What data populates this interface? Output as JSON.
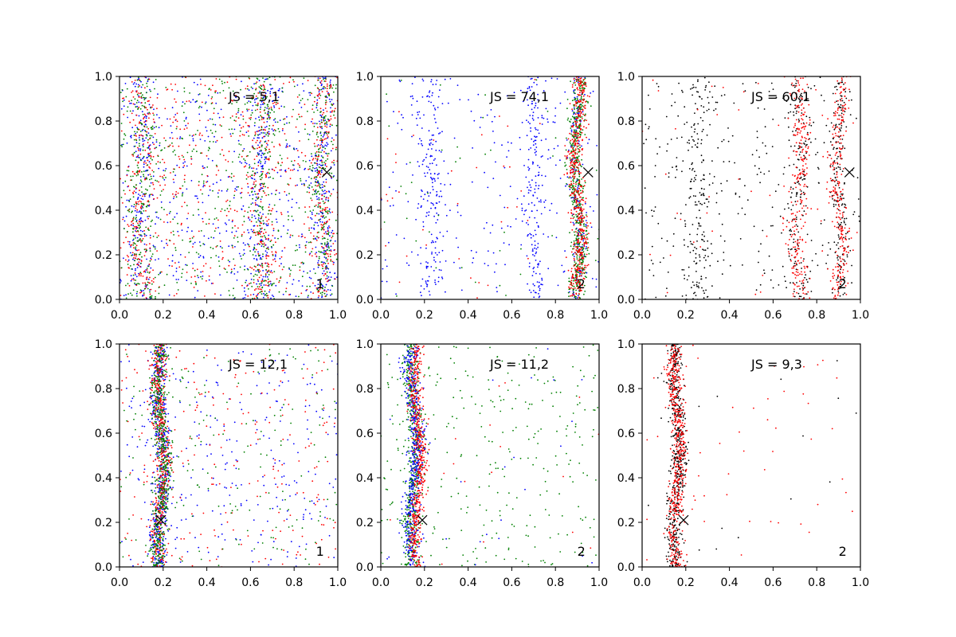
{
  "chart_data": [
    {
      "type": "scatter",
      "annotation": "JS = 5,1",
      "corner_label": "1",
      "marker": {
        "x": 0.95,
        "y": 0.57
      },
      "xlim": [
        0,
        1
      ],
      "ylim": [
        0,
        1
      ],
      "xticks": [
        "0.0",
        "0.2",
        "0.4",
        "0.6",
        "0.8",
        "1.0"
      ],
      "yticks": [
        "0.0",
        "0.2",
        "0.4",
        "0.6",
        "0.8",
        "1.0"
      ],
      "series": [
        {
          "color": "#0000ff",
          "bands": [
            {
              "center": 0.1,
              "width": 0.05
            },
            {
              "center": 0.65,
              "width": 0.05
            },
            {
              "center": 0.93,
              "width": 0.04
            }
          ],
          "uniform_fraction": 0.55
        },
        {
          "color": "#ff0000",
          "bands": [
            {
              "center": 0.1,
              "width": 0.05
            },
            {
              "center": 0.65,
              "width": 0.05
            },
            {
              "center": 0.93,
              "width": 0.04
            }
          ],
          "uniform_fraction": 0.55
        },
        {
          "color": "#008000",
          "bands": [
            {
              "center": 0.1,
              "width": 0.05
            },
            {
              "center": 0.65,
              "width": 0.05
            },
            {
              "center": 0.93,
              "width": 0.04
            }
          ],
          "uniform_fraction": 0.55
        }
      ]
    },
    {
      "type": "scatter",
      "annotation": "JS = 74,1",
      "corner_label": "2",
      "marker": {
        "x": 0.95,
        "y": 0.57
      },
      "xlim": [
        0,
        1
      ],
      "ylim": [
        0,
        1
      ],
      "xticks": [
        "0.0",
        "0.2",
        "0.4",
        "0.6",
        "0.8",
        "1.0"
      ],
      "yticks": [
        "0.0",
        "0.2",
        "0.4",
        "0.6",
        "0.8",
        "1.0"
      ],
      "series": [
        {
          "color": "#0000ff",
          "bands": [
            {
              "center": 0.23,
              "width": 0.05
            },
            {
              "center": 0.7,
              "width": 0.04
            },
            {
              "center": 0.9,
              "width": 0.03
            }
          ],
          "uniform_fraction": 0.25
        },
        {
          "color": "#008000",
          "bands": [
            {
              "center": 0.9,
              "width": 0.03
            }
          ],
          "uniform_fraction": 0.05
        },
        {
          "color": "#ff0000",
          "bands": [
            {
              "center": 0.9,
              "width": 0.03
            }
          ],
          "uniform_fraction": 0.05
        }
      ]
    },
    {
      "type": "scatter",
      "annotation": "JS = 60,1",
      "corner_label": "2",
      "marker": {
        "x": 0.95,
        "y": 0.57
      },
      "xlim": [
        0,
        1
      ],
      "ylim": [
        0,
        1
      ],
      "xticks": [
        "0.0",
        "0.2",
        "0.4",
        "0.6",
        "0.8",
        "1.0"
      ],
      "yticks": [
        "0.0",
        "0.2",
        "0.4",
        "0.6",
        "0.8",
        "1.0"
      ],
      "series": [
        {
          "color": "#000000",
          "bands": [
            {
              "center": 0.25,
              "width": 0.06
            },
            {
              "center": 0.72,
              "width": 0.05
            },
            {
              "center": 0.9,
              "width": 0.03
            }
          ],
          "uniform_fraction": 0.3
        },
        {
          "color": "#ff0000",
          "bands": [
            {
              "center": 0.9,
              "width": 0.03
            },
            {
              "center": 0.72,
              "width": 0.04
            }
          ],
          "uniform_fraction": 0.05
        }
      ]
    },
    {
      "type": "scatter",
      "annotation": "JS = 12,1",
      "corner_label": "1",
      "marker": {
        "x": 0.19,
        "y": 0.21
      },
      "xlim": [
        0,
        1
      ],
      "ylim": [
        0,
        1
      ],
      "xticks": [
        "0.0",
        "0.2",
        "0.4",
        "0.6",
        "0.8",
        "1.0"
      ],
      "yticks": [
        "0.0",
        "0.2",
        "0.4",
        "0.6",
        "0.8",
        "1.0"
      ],
      "series": [
        {
          "color": "#0000ff",
          "bands": [
            {
              "center": 0.19,
              "width": 0.03
            }
          ],
          "uniform_fraction": 0.3
        },
        {
          "color": "#ff0000",
          "bands": [
            {
              "center": 0.19,
              "width": 0.03
            }
          ],
          "uniform_fraction": 0.25
        },
        {
          "color": "#008000",
          "bands": [
            {
              "center": 0.19,
              "width": 0.03
            }
          ],
          "uniform_fraction": 0.2
        }
      ]
    },
    {
      "type": "scatter",
      "annotation": "JS = 11,2",
      "corner_label": "2",
      "marker": {
        "x": 0.19,
        "y": 0.21
      },
      "xlim": [
        0,
        1
      ],
      "ylim": [
        0,
        1
      ],
      "xticks": [
        "0.0",
        "0.2",
        "0.4",
        "0.6",
        "0.8",
        "1.0"
      ],
      "yticks": [
        "0.0",
        "0.2",
        "0.4",
        "0.6",
        "0.8",
        "1.0"
      ],
      "series": [
        {
          "color": "#008000",
          "bands": [
            {
              "center": 0.15,
              "width": 0.03
            }
          ],
          "uniform_fraction": 0.35
        },
        {
          "color": "#0000ff",
          "bands": [
            {
              "center": 0.15,
              "width": 0.03
            }
          ],
          "uniform_fraction": 0.03
        },
        {
          "color": "#ff0000",
          "bands": [
            {
              "center": 0.17,
              "width": 0.025
            }
          ],
          "uniform_fraction": 0.02
        }
      ]
    },
    {
      "type": "scatter",
      "annotation": "JS = 9,3",
      "corner_label": "2",
      "marker": {
        "x": 0.19,
        "y": 0.21
      },
      "xlim": [
        0,
        1
      ],
      "ylim": [
        0,
        1
      ],
      "xticks": [
        "0.0",
        "0.2",
        "0.4",
        "0.6",
        "0.8",
        "1.0"
      ],
      "yticks": [
        "0.0",
        "0.2",
        "0.4",
        "0.6",
        "0.8",
        "1.0"
      ],
      "series": [
        {
          "color": "#000000",
          "bands": [
            {
              "center": 0.16,
              "width": 0.03
            }
          ],
          "uniform_fraction": 0.02
        },
        {
          "color": "#ff0000",
          "bands": [
            {
              "center": 0.16,
              "width": 0.03
            }
          ],
          "uniform_fraction": 0.06
        }
      ]
    }
  ]
}
